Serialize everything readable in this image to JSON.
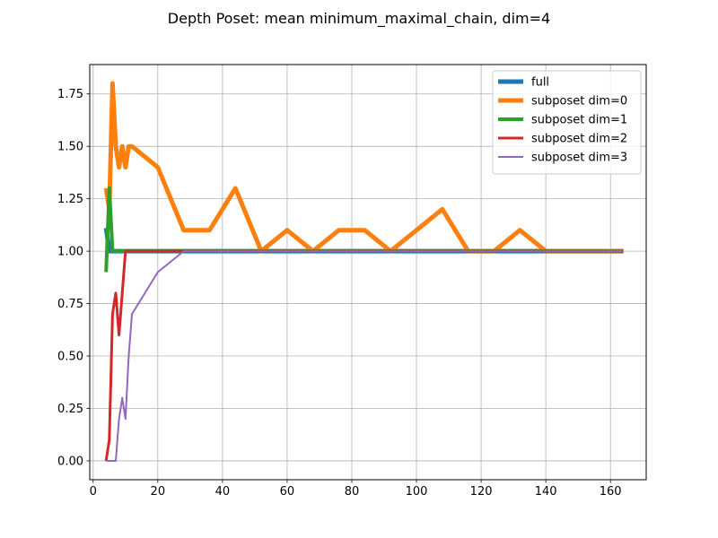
{
  "chart_data": {
    "type": "line",
    "title": "Depth Poset: mean minimum_maximal_chain, dim=4",
    "xlabel": "",
    "ylabel": "",
    "xlim": [
      -1.05,
      171.05
    ],
    "ylim": [
      -0.09,
      1.89
    ],
    "xticks": [
      0,
      20,
      40,
      60,
      80,
      100,
      120,
      140,
      160
    ],
    "xtick_labels": [
      "0",
      "20",
      "40",
      "60",
      "80",
      "100",
      "120",
      "140",
      "160"
    ],
    "yticks": [
      0,
      0.25,
      0.5,
      0.75,
      1.0,
      1.25,
      1.5,
      1.75
    ],
    "ytick_labels": [
      "0.00",
      "0.25",
      "0.50",
      "0.75",
      "1.00",
      "1.25",
      "1.50",
      "1.75"
    ],
    "grid": true,
    "legend_position": "top-right",
    "series": [
      {
        "name": "full",
        "color": "#1f77b4",
        "x": [
          4,
          5,
          6,
          8,
          10,
          12,
          20,
          28,
          36,
          44,
          52,
          60,
          68,
          76,
          84,
          92,
          100,
          108,
          116,
          124,
          132,
          140,
          148,
          156,
          164
        ],
        "y": [
          1.11,
          1.0,
          1.0,
          1.0,
          1.0,
          1.0,
          1.0,
          1.0,
          1.0,
          1.0,
          1.0,
          1.0,
          1.0,
          1.0,
          1.0,
          1.0,
          1.0,
          1.0,
          1.0,
          1.0,
          1.0,
          1.0,
          1.0,
          1.0,
          1.0
        ]
      },
      {
        "name": "subposet dim=0",
        "color": "#ff7f0e",
        "x": [
          4,
          5,
          6,
          7,
          8,
          9,
          10,
          11,
          12,
          20,
          28,
          36,
          44,
          52,
          60,
          68,
          76,
          84,
          92,
          100,
          108,
          116,
          124,
          132,
          140,
          148,
          156,
          164
        ],
        "y": [
          1.3,
          1.2,
          1.8,
          1.5,
          1.4,
          1.5,
          1.4,
          1.5,
          1.5,
          1.4,
          1.1,
          1.1,
          1.3,
          1.0,
          1.1,
          1.0,
          1.1,
          1.1,
          1.0,
          1.1,
          1.2,
          1.0,
          1.0,
          1.1,
          1.0,
          1.0,
          1.0,
          1.0
        ]
      },
      {
        "name": "subposet dim=1",
        "color": "#2ca02c",
        "x": [
          4,
          5,
          6,
          7,
          8,
          10,
          12,
          20,
          28,
          36,
          44,
          52,
          60,
          68,
          76,
          84,
          92,
          100,
          108,
          116,
          124,
          132,
          140,
          148,
          156,
          164
        ],
        "y": [
          0.9,
          1.3,
          1.0,
          1.0,
          1.0,
          1.0,
          1.0,
          1.0,
          1.0,
          1.0,
          1.0,
          1.0,
          1.0,
          1.0,
          1.0,
          1.0,
          1.0,
          1.0,
          1.0,
          1.0,
          1.0,
          1.0,
          1.0,
          1.0,
          1.0,
          1.0
        ]
      },
      {
        "name": "subposet dim=2",
        "color": "#d62728",
        "x": [
          4,
          5,
          6,
          7,
          8,
          9,
          10,
          11,
          12,
          20,
          28,
          36,
          44,
          52,
          60,
          68,
          76,
          84,
          92,
          100,
          108,
          116,
          124,
          132,
          140,
          148,
          156,
          164
        ],
        "y": [
          0.0,
          0.1,
          0.7,
          0.8,
          0.6,
          0.8,
          1.0,
          1.0,
          1.0,
          1.0,
          1.0,
          1.0,
          1.0,
          1.0,
          1.0,
          1.0,
          1.0,
          1.0,
          1.0,
          1.0,
          1.0,
          1.0,
          1.0,
          1.0,
          1.0,
          1.0,
          1.0,
          1.0
        ]
      },
      {
        "name": "subposet dim=3",
        "color": "#9467bd",
        "x": [
          4,
          5,
          6,
          7,
          8,
          9,
          10,
          11,
          12,
          20,
          28,
          36,
          44,
          52,
          60,
          68,
          76,
          84,
          92,
          100,
          108,
          116,
          124,
          132,
          140,
          148,
          156,
          164
        ],
        "y": [
          0.0,
          0.0,
          0.0,
          0.0,
          0.2,
          0.3,
          0.2,
          0.5,
          0.7,
          0.9,
          1.0,
          1.0,
          1.0,
          1.0,
          1.0,
          1.0,
          1.0,
          1.0,
          1.0,
          1.0,
          1.0,
          1.0,
          1.0,
          1.0,
          1.0,
          1.0,
          1.0,
          1.0
        ]
      }
    ]
  }
}
